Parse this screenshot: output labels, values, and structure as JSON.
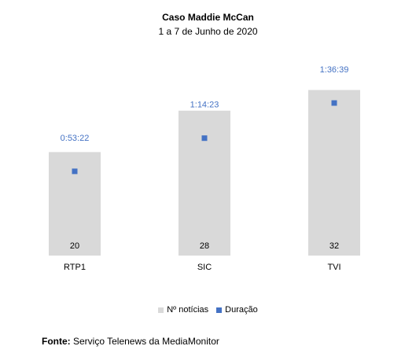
{
  "chart_data": {
    "type": "bar",
    "title": "Caso Maddie  McCan",
    "subtitle": "1 a 7 de Junho de 2020",
    "categories": [
      "RTP1",
      "SIC",
      "TVI"
    ],
    "series": [
      {
        "name": "Nº notícias",
        "type": "bar",
        "values": [
          20,
          28,
          32
        ],
        "labels": [
          "20",
          "28",
          "32"
        ],
        "color": "#d9d9d9"
      },
      {
        "name": "Duração",
        "type": "marker",
        "values_seconds": [
          3202,
          4463,
          5799
        ],
        "labels": [
          "0:53:22",
          "1:14:23",
          "1:36:39"
        ],
        "color": "#4472c4"
      }
    ],
    "ylim": [
      0,
      36
    ],
    "legend_position": "bottom",
    "grid": false
  },
  "source": {
    "label": "Fonte:",
    "text": " Serviço Telenews da MediaMonitor"
  }
}
